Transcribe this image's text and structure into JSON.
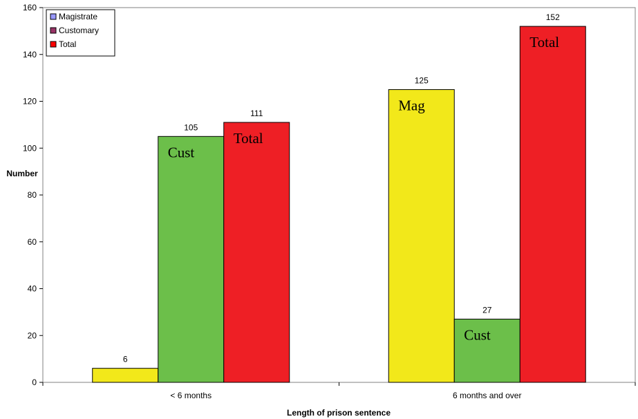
{
  "chart_data": {
    "type": "bar",
    "title": "",
    "xlabel": "Length of prison sentence",
    "ylabel": "Number",
    "ylim": [
      0,
      160
    ],
    "yticks": [
      0,
      20,
      40,
      60,
      80,
      100,
      120,
      140,
      160
    ],
    "grid": false,
    "legend_position": "top-left",
    "categories": [
      "< 6 months",
      "6 months and over"
    ],
    "series": [
      {
        "name": "Magistrate",
        "legend_color": "#9999ff",
        "bar_color": "#f2e81a",
        "values": [
          6,
          125
        ],
        "annotations": [
          "",
          "Mag"
        ]
      },
      {
        "name": "Customary",
        "legend_color": "#993366",
        "bar_color": "#6cbf4a",
        "values": [
          105,
          27
        ],
        "annotations": [
          "Cust",
          "Cust"
        ]
      },
      {
        "name": "Total",
        "legend_color": "#ff0000",
        "bar_color": "#ee1f25",
        "values": [
          111,
          152
        ],
        "annotations": [
          "Total",
          "Total"
        ]
      }
    ]
  }
}
